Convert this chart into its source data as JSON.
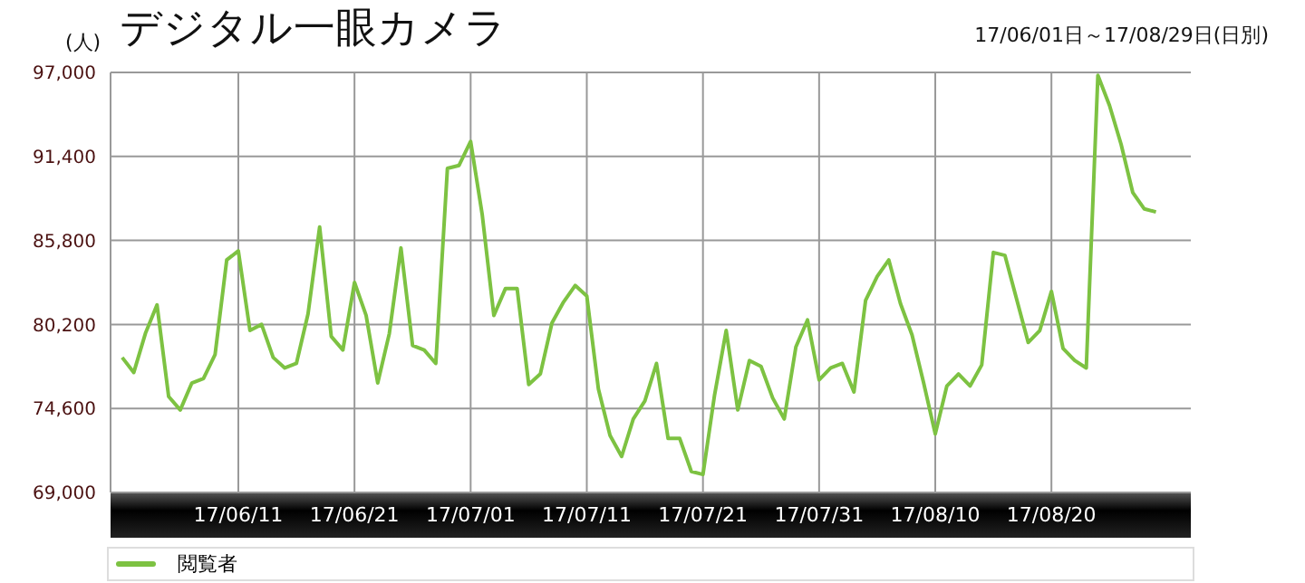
{
  "chart_data": {
    "type": "line",
    "title": "デジタル一眼カメラ",
    "subtitle": "17/06/01日～17/08/29日(日別)",
    "ylabel": "(人)",
    "xlim": [
      "--05-31",
      "--09-01"
    ],
    "xticks": [
      {
        "value": "--06-11",
        "label": "17/06/11"
      },
      {
        "value": "--06-21",
        "label": "17/06/21"
      },
      {
        "value": "--07-01",
        "label": "17/07/01"
      },
      {
        "value": "--07-11",
        "label": "17/07/11"
      },
      {
        "value": "--07-21",
        "label": "17/07/21"
      },
      {
        "value": "--07-31",
        "label": "17/07/31"
      },
      {
        "value": "--08-10",
        "label": "17/08/10"
      },
      {
        "value": "--08-20",
        "label": "17/08/20"
      }
    ],
    "ylim": [
      69000,
      97000
    ],
    "yticks": [
      {
        "value": 69000,
        "label": "69,000"
      },
      {
        "value": 74600,
        "label": "74,600"
      },
      {
        "value": 80200,
        "label": "80,200"
      },
      {
        "value": 85800,
        "label": "85,800"
      },
      {
        "value": 91400,
        "label": "91,400"
      },
      {
        "value": 97000,
        "label": "97,000"
      }
    ],
    "grid": true,
    "legend": "bottom",
    "marker": "none",
    "line_style": "solid",
    "x": [
      "--06-01",
      "--06-02",
      "--06-03",
      "--06-04",
      "--06-05",
      "--06-06",
      "--06-07",
      "--06-08",
      "--06-09",
      "--06-10",
      "--06-11",
      "--06-12",
      "--06-13",
      "--06-14",
      "--06-15",
      "--06-16",
      "--06-17",
      "--06-18",
      "--06-19",
      "--06-20",
      "--06-21",
      "--06-22",
      "--06-23",
      "--06-24",
      "--06-25",
      "--06-26",
      "--06-27",
      "--06-28",
      "--06-29",
      "--06-30",
      "--07-01",
      "--07-02",
      "--07-03",
      "--07-04",
      "--07-05",
      "--07-06",
      "--07-07",
      "--07-08",
      "--07-09",
      "--07-10",
      "--07-11",
      "--07-12",
      "--07-13",
      "--07-14",
      "--07-15",
      "--07-16",
      "--07-17",
      "--07-18",
      "--07-19",
      "--07-20",
      "--07-21",
      "--07-22",
      "--07-23",
      "--07-24",
      "--07-25",
      "--07-26",
      "--07-27",
      "--07-28",
      "--07-29",
      "--07-30",
      "--07-31",
      "--08-01",
      "--08-02",
      "--08-03",
      "--08-04",
      "--08-05",
      "--08-06",
      "--08-07",
      "--08-08",
      "--08-09",
      "--08-10",
      "--08-11",
      "--08-12",
      "--08-13",
      "--08-14",
      "--08-15",
      "--08-16",
      "--08-17",
      "--08-18",
      "--08-19",
      "--08-20",
      "--08-21",
      "--08-22",
      "--08-23",
      "--08-24",
      "--08-25",
      "--08-26",
      "--08-27",
      "--08-28",
      "--08-29"
    ],
    "series": [
      {
        "name": "閲覧者",
        "color": "#7dc242",
        "values": [
          78000,
          77000,
          79600,
          81500,
          75400,
          74500,
          76300,
          76600,
          78200,
          84500,
          85100,
          79800,
          80200,
          78000,
          77300,
          77600,
          80900,
          86700,
          79400,
          78500,
          83000,
          80800,
          76300,
          79600,
          85300,
          78800,
          78500,
          77600,
          90600,
          90800,
          92400,
          87500,
          80800,
          82600,
          82600,
          76200,
          76900,
          80300,
          81700,
          82800,
          82100,
          75900,
          72800,
          71400,
          73900,
          75100,
          77600,
          72600,
          72600,
          70400,
          70200,
          75500,
          79800,
          74500,
          77800,
          77400,
          75300,
          73900,
          78700,
          80500,
          76500,
          77300,
          77600,
          75700,
          81800,
          83400,
          84500,
          81600,
          79500,
          76300,
          72900,
          76100,
          76900,
          76100,
          77500,
          85000,
          84800,
          81900,
          79000,
          79800,
          82400,
          78600,
          77800,
          77300,
          96800,
          94800,
          92200,
          89000,
          87900,
          87700
        ]
      }
    ]
  }
}
